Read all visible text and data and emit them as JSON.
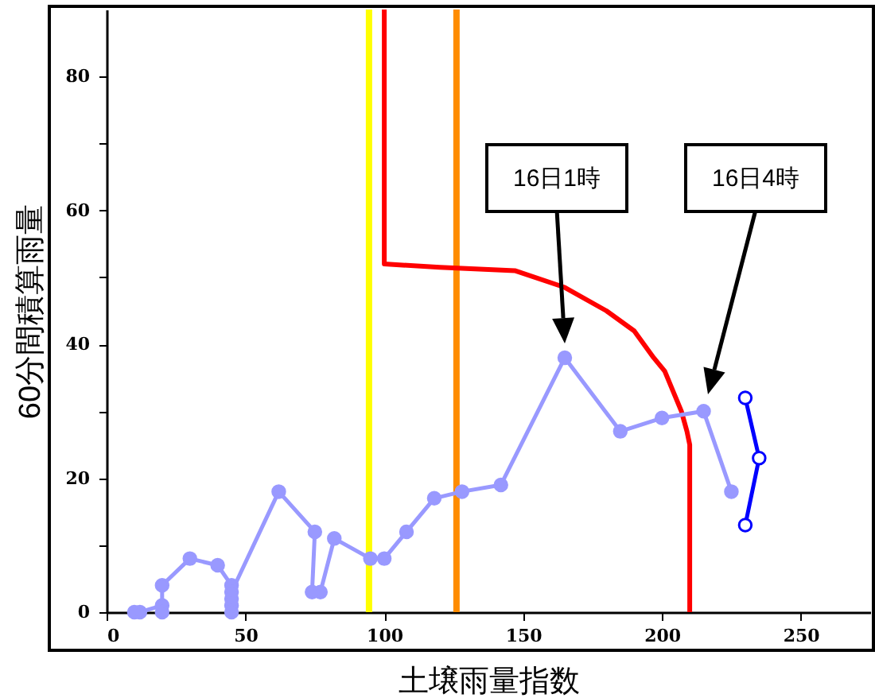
{
  "chart_data": {
    "type": "line",
    "xlabel": "土壌雨量指数",
    "ylabel": "60分間積算雨量",
    "xlim": [
      0,
      275
    ],
    "ylim": [
      0,
      90
    ],
    "xticks": [
      0,
      50,
      100,
      150,
      200,
      250
    ],
    "yticks": [
      0,
      {
        "value": 10,
        "label": null
      },
      20,
      {
        "value": 30,
        "label": null
      },
      40,
      {
        "value": 50,
        "label": null
      },
      60,
      {
        "value": 70,
        "label": null
      },
      80
    ],
    "grid": false,
    "series": [
      {
        "color": "#ff0000",
        "marker": "none",
        "x": [
          100,
          100,
          120,
          147,
          165,
          180,
          190,
          197,
          201,
          204,
          207,
          209,
          210,
          210
        ],
        "values": [
          90,
          52,
          51.5,
          51,
          48.5,
          45,
          42,
          38,
          36,
          33,
          30,
          27,
          25,
          0
        ]
      },
      {
        "color": "#9999ff",
        "marker": "circle",
        "x": [
          10,
          12,
          20,
          20,
          20,
          30,
          40,
          45,
          45,
          45,
          45,
          45,
          62,
          75,
          74,
          77,
          82,
          95,
          100,
          108,
          118,
          128,
          142,
          165,
          185,
          200,
          215,
          225
        ],
        "values": [
          0,
          0,
          1,
          0,
          4,
          8,
          7,
          4,
          0,
          1,
          2,
          3,
          18,
          12,
          3,
          3,
          11,
          8,
          8,
          12,
          17,
          18,
          19,
          38,
          27,
          29,
          30,
          18
        ]
      },
      {
        "color": "#0000ff",
        "marker": "circle",
        "x": [
          230,
          235,
          230
        ],
        "values": [
          32,
          23,
          13
        ]
      }
    ],
    "ref_lines": [
      {
        "axis": "x",
        "value": 94.5,
        "color": "#ffff00"
      },
      {
        "axis": "x",
        "value": 126,
        "color": "#ff8c00"
      }
    ],
    "annotations": [
      "16日1時",
      "16日4時"
    ]
  }
}
